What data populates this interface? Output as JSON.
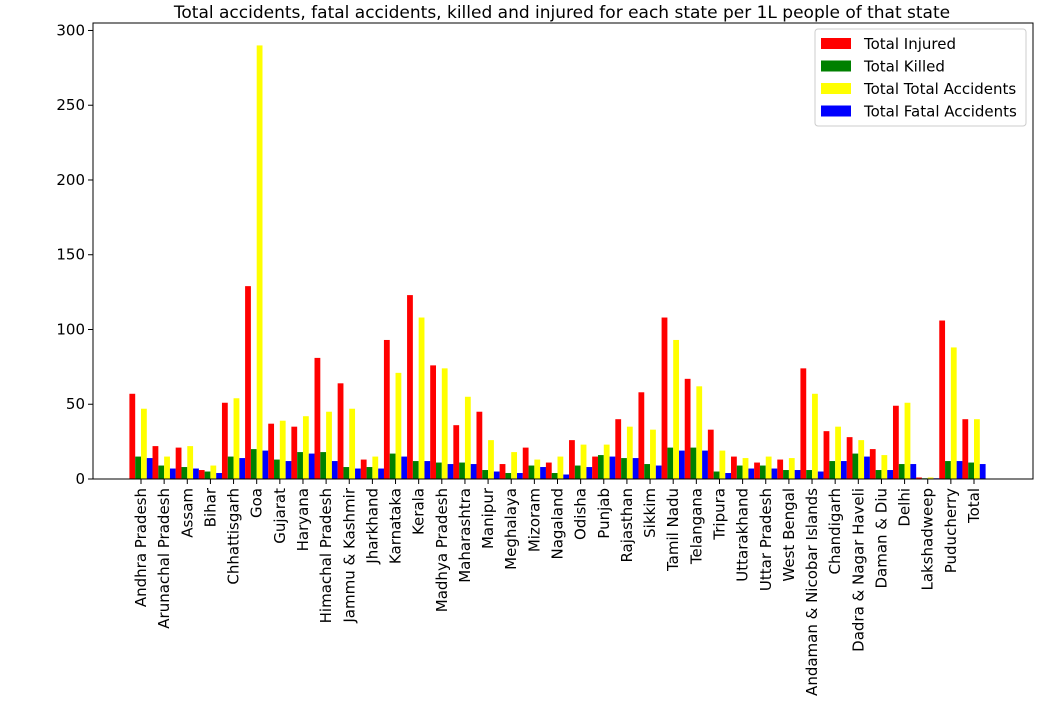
{
  "chart_data": {
    "type": "bar",
    "title": "Total accidents, fatal accidents, killed and injured for each state per 1L people of that state",
    "xlabel": "",
    "ylabel": "",
    "ylim": [
      0,
      305
    ],
    "yticks": [
      0,
      50,
      100,
      150,
      200,
      250,
      300
    ],
    "grid": false,
    "legend_position": "top-right",
    "categories": [
      "Andhra Pradesh",
      "Arunachal Pradesh",
      "Assam",
      "Bihar",
      "Chhattisgarh",
      "Goa",
      "Gujarat",
      "Haryana",
      "Himachal Pradesh",
      "Jammu & Kashmir",
      "Jharkhand",
      "Karnataka",
      "Kerala",
      "Madhya Pradesh",
      "Maharashtra",
      "Manipur",
      "Meghalaya",
      "Mizoram",
      "Nagaland",
      "Odisha",
      "Punjab",
      "Rajasthan",
      "Sikkim",
      "Tamil Nadu",
      "Telangana",
      "Tripura",
      "Uttarakhand",
      "Uttar Pradesh",
      "West Bengal",
      "Andaman & Nicobar Islands",
      "Chandigarh",
      "Dadra & Nagar Haveli",
      "Daman & Diu",
      "Delhi",
      "Lakshadweep",
      "Puducherry",
      "Total"
    ],
    "series": [
      {
        "name": "Total Injured",
        "color": "#ff0000",
        "values": [
          57,
          22,
          21,
          6,
          51,
          129,
          37,
          35,
          81,
          64,
          13,
          93,
          123,
          76,
          36,
          45,
          10,
          21,
          11,
          26,
          15,
          40,
          58,
          108,
          67,
          33,
          15,
          11,
          13,
          74,
          32,
          28,
          20,
          49,
          1,
          106,
          40
        ]
      },
      {
        "name": "Total Killed",
        "color": "#008000",
        "values": [
          15,
          9,
          8,
          5,
          15,
          20,
          13,
          18,
          18,
          8,
          8,
          17,
          12,
          11,
          11,
          6,
          4,
          9,
          4,
          9,
          16,
          14,
          10,
          21,
          21,
          5,
          9,
          9,
          6,
          6,
          12,
          17,
          6,
          10,
          0.5,
          12,
          11
        ]
      },
      {
        "name": "Total Total Accidents",
        "color": "#ffff00",
        "values": [
          47,
          15,
          22,
          9,
          54,
          290,
          39,
          42,
          45,
          47,
          15,
          71,
          108,
          74,
          55,
          26,
          18,
          13,
          15,
          23,
          23,
          35,
          33,
          93,
          62,
          19,
          14,
          15,
          14,
          57,
          35,
          26,
          16,
          51,
          1,
          88,
          40
        ]
      },
      {
        "name": "Total Fatal Accidents",
        "color": "#0000ff",
        "values": [
          14,
          7,
          7,
          4,
          14,
          19,
          12,
          17,
          12,
          7,
          7,
          15,
          12,
          10,
          10,
          5,
          4,
          8,
          3,
          8,
          15,
          14,
          9,
          19,
          19,
          4,
          7,
          7,
          6,
          5,
          12,
          15,
          6,
          10,
          0.5,
          12,
          10
        ]
      }
    ]
  }
}
